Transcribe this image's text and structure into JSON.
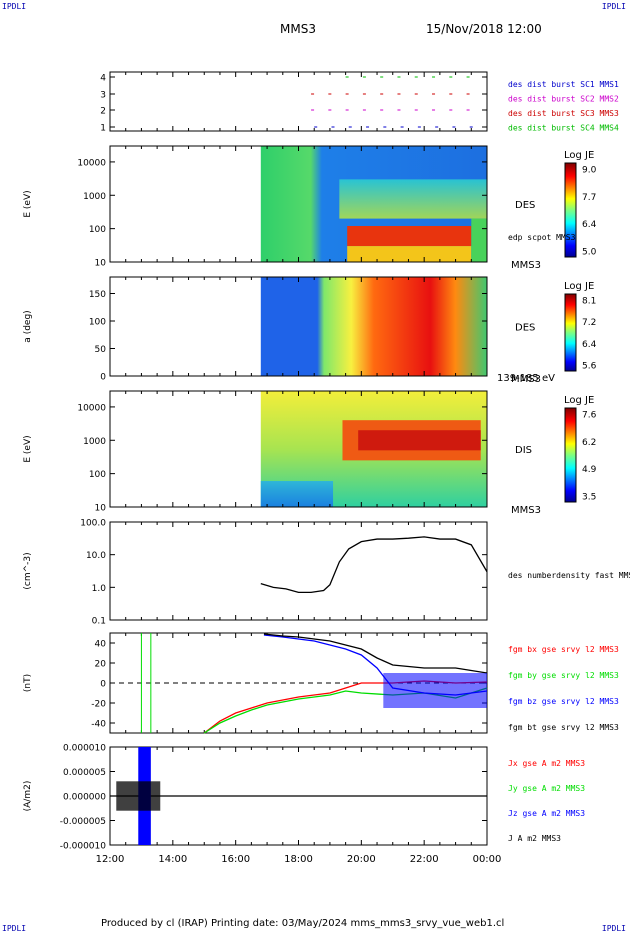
{
  "corners": {
    "top_left": "IPDLI",
    "top_right": "IPDLI",
    "bottom_left": "IPDLI",
    "bottom_right": "IPDLI"
  },
  "header": {
    "title": "MMS3",
    "datetime": "15/Nov/2018 12:00"
  },
  "footer": {
    "text": "Produced by cl (IRAP)   Printing date: 03/May/2024   mms_mms3_srvy_vue_web1.cl"
  },
  "colors": {
    "fg_x": "#ff0000",
    "fg_y": "#00dd00",
    "fg_z": "#0000ff",
    "fg_t": "#000000",
    "mms1": "#0000cc",
    "mms2": "#cc00cc",
    "mms3": "#cc0000",
    "mms4": "#00bb00"
  },
  "chart_data": [
    {
      "type": "scatter",
      "panel": "burst-availability",
      "yticks": [
        "4",
        "3",
        "2",
        "1"
      ],
      "legend": [
        {
          "name": "des dist burst SC1 MMS1",
          "color": "#0000cc"
        },
        {
          "name": "des dist burst SC2 MMS2",
          "color": "#cc00cc"
        },
        {
          "name": "des dist burst SC3 MMS3",
          "color": "#cc0000"
        },
        {
          "name": "des dist burst SC4 MMS4",
          "color": "#00bb00"
        }
      ]
    },
    {
      "type": "heatmap",
      "panel": "des-energy",
      "ylabel": "E (eV)",
      "yticks": [
        "10000",
        "1000",
        "100",
        "10"
      ],
      "ylim": [
        10,
        30000
      ],
      "side_label": "DES",
      "overlay_label": "edp scpot MMS3",
      "bottom_label": "MMS3",
      "colorbar": {
        "title": "Log JE",
        "ticks": [
          "9.0",
          "7.7",
          "6.4",
          "5.0"
        ],
        "range": [
          5.0,
          9.0
        ]
      }
    },
    {
      "type": "heatmap",
      "panel": "des-pitch-angle",
      "ylabel": "a (deg)",
      "yticks": [
        "150",
        "100",
        "50",
        "0"
      ],
      "ylim": [
        0,
        180
      ],
      "side_label": "DES",
      "bottom_label": "MMS3",
      "energy_label": "139-185 eV",
      "colorbar": {
        "title": "Log JE",
        "ticks": [
          "8.1",
          "7.2",
          "6.4",
          "5.6"
        ],
        "range": [
          5.6,
          8.1
        ]
      }
    },
    {
      "type": "heatmap",
      "panel": "dis-energy",
      "ylabel": "E (eV)",
      "yticks": [
        "10000",
        "1000",
        "100",
        "10"
      ],
      "ylim": [
        10,
        30000
      ],
      "side_label": "DIS",
      "bottom_label": "MMS3",
      "colorbar": {
        "title": "Log JE",
        "ticks": [
          "7.6",
          "6.2",
          "4.9",
          "3.5"
        ],
        "range": [
          3.5,
          7.6
        ]
      }
    },
    {
      "type": "line",
      "panel": "density",
      "ylabel": "(cm^-3)",
      "yticks": [
        "100.0",
        "10.0",
        "1.0",
        "0.1"
      ],
      "ylim": [
        0.1,
        100
      ],
      "log": true,
      "series": [
        {
          "name": "des numberdensity fast MMS3",
          "color": "#000000",
          "x": [
            16.8,
            17.2,
            17.6,
            18.0,
            18.4,
            18.8,
            19.0,
            19.3,
            19.6,
            20.0,
            20.5,
            21.0,
            21.5,
            22.0,
            22.5,
            23.0,
            23.5,
            24.0
          ],
          "values": [
            1.3,
            1.0,
            0.9,
            0.7,
            0.7,
            0.8,
            1.2,
            6,
            15,
            25,
            30,
            30,
            32,
            35,
            30,
            30,
            20,
            3
          ]
        }
      ]
    },
    {
      "type": "line",
      "panel": "magnetic-field",
      "ylabel": "(nT)",
      "yticks": [
        "40",
        "20",
        "0",
        "-20",
        "-40"
      ],
      "ylim": [
        -50,
        50
      ],
      "series": [
        {
          "name": "fgm bx gse srvy l2 MMS3",
          "color": "#ff0000",
          "x": [
            15.0,
            15.5,
            16.0,
            16.5,
            17.0,
            17.5,
            18.0,
            18.5,
            19.0,
            19.5,
            20.0,
            21.0,
            22.0,
            23.0,
            24.0
          ],
          "values": [
            -50,
            -38,
            -30,
            -25,
            -20,
            -17,
            -14,
            -12,
            -10,
            -5,
            0,
            0,
            2,
            0,
            1
          ]
        },
        {
          "name": "fgm by gse srvy l2 MMS3",
          "color": "#00dd00",
          "x": [
            15.0,
            15.5,
            16.0,
            16.5,
            17.0,
            17.5,
            18.0,
            18.5,
            19.0,
            19.5,
            20.0,
            21.0,
            22.0,
            23.0,
            24.0
          ],
          "values": [
            -50,
            -40,
            -33,
            -27,
            -22,
            -19,
            -16,
            -14,
            -12,
            -8,
            -10,
            -12,
            -10,
            -15,
            -5
          ]
        },
        {
          "name": "fgm bz gse srvy l2 MMS3",
          "color": "#0000ff",
          "x": [
            16.9,
            17.5,
            18.0,
            18.5,
            19.0,
            19.5,
            20.0,
            20.5,
            21.0,
            22.0,
            23.0,
            24.0
          ],
          "values": [
            48,
            46,
            44,
            42,
            38,
            34,
            28,
            15,
            -5,
            -10,
            -12,
            -8
          ]
        },
        {
          "name": "fgm bt gse srvy l2 MMS3",
          "color": "#000000",
          "x": [
            16.9,
            17.5,
            18.0,
            18.5,
            19.0,
            19.5,
            20.0,
            20.5,
            21.0,
            22.0,
            23.0,
            24.0
          ],
          "values": [
            49,
            47,
            46,
            44,
            42,
            38,
            34,
            25,
            18,
            15,
            15,
            10
          ]
        }
      ]
    },
    {
      "type": "line",
      "panel": "current-density",
      "ylabel": "(A/m2)",
      "yticks": [
        "0.000010",
        "0.000005",
        "0.000000",
        "-0.000005",
        "-0.000010"
      ],
      "ylim": [
        -1e-05,
        1e-05
      ],
      "series": [
        {
          "name": "Jx gse A m2 MMS3",
          "color": "#ff0000"
        },
        {
          "name": "Jy gse A m2 MMS3",
          "color": "#00dd00"
        },
        {
          "name": "Jz gse A m2 MMS3",
          "color": "#0000ff"
        },
        {
          "name": "J A m2 MMS3",
          "color": "#000000"
        }
      ]
    }
  ],
  "xaxis": {
    "ticks": [
      "12:00",
      "14:00",
      "16:00",
      "18:00",
      "20:00",
      "22:00",
      "00:00"
    ],
    "range_hours": [
      12,
      24
    ]
  }
}
